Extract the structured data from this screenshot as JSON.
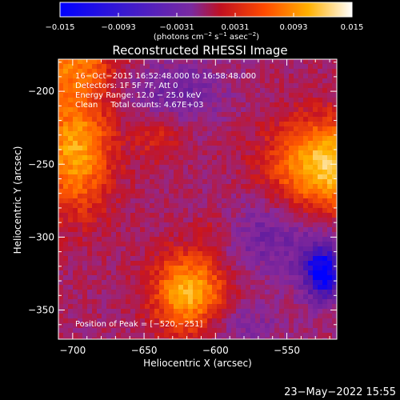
{
  "colorbar": {
    "ticks": [
      "−0.015",
      "−0.0093",
      "−0.0031",
      "0.0031",
      "0.0093",
      "0.015"
    ],
    "units_prefix": "(photons cm",
    "units_exp1": "−2",
    "units_mid1": " s",
    "units_exp2": "−1",
    "units_mid2": " asec",
    "units_exp3": "−2",
    "units_suffix": ")"
  },
  "chart_data": {
    "type": "heatmap",
    "title": "Reconstructed RHESSI Image",
    "xlabel": "Heliocentric X (arcsec)",
    "ylabel": "Heliocentric Y (arcsec)",
    "xlim": [
      -710,
      -515
    ],
    "ylim": [
      -370,
      -178
    ],
    "x_ticks": [
      -700,
      -650,
      -600,
      -550
    ],
    "y_ticks": [
      -200,
      -250,
      -300,
      -350
    ],
    "x_tick_labels": [
      "−700",
      "−650",
      "−600",
      "−550"
    ],
    "y_tick_labels": [
      "−200",
      "−250",
      "−300",
      "−350"
    ],
    "color_range": [
      -0.015,
      0.015
    ],
    "colormap": [
      "#0000ff",
      "#5a1aa0",
      "#8a2a9a",
      "#c8141e",
      "#ff5a00",
      "#ffb400",
      "#ffffff"
    ],
    "info_lines": [
      "16−Oct−2015 16:52:48.000 to 16:58:48.000",
      "Detectors: 1F 5F 7F, Att 0",
      "Energy Range: 12.0 − 25.0 keV",
      "Clean     Total counts: 4.67E+03"
    ],
    "peak_label": "Position of Peak = [−520,−251]",
    "sources": [
      {
        "x": -520,
        "y": -251,
        "flux": 0.015,
        "sx": 28,
        "sy": 22
      },
      {
        "x": -618,
        "y": -338,
        "flux": 0.013,
        "sx": 18,
        "sy": 20
      },
      {
        "x": -698,
        "y": -240,
        "flux": 0.012,
        "sx": 18,
        "sy": 30
      },
      {
        "x": -700,
        "y": -180,
        "flux": 0.008,
        "sx": 22,
        "sy": 16
      },
      {
        "x": -640,
        "y": -232,
        "flux": 0.004,
        "sx": 12,
        "sy": 12
      },
      {
        "x": -598,
        "y": -293,
        "flux": 0.003,
        "sx": 10,
        "sy": 10
      },
      {
        "x": -628,
        "y": -200,
        "flux": -0.005,
        "sx": 25,
        "sy": 15
      },
      {
        "x": -560,
        "y": -300,
        "flux": -0.005,
        "sx": 30,
        "sy": 20
      },
      {
        "x": -525,
        "y": -325,
        "flux": -0.012,
        "sx": 10,
        "sy": 14
      },
      {
        "x": -585,
        "y": -360,
        "flux": -0.004,
        "sx": 20,
        "sy": 10
      }
    ]
  },
  "footer": {
    "date": "23−May−2022 15:55"
  }
}
